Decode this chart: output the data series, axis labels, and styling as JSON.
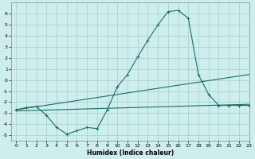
{
  "background_color": "#ceeeed",
  "grid_color": "#aad4d0",
  "line_color": "#1a6e64",
  "marker": "+",
  "xlabel": "Humidex (Indice chaleur)",
  "xlim": [
    -0.5,
    23
  ],
  "ylim": [
    -5.5,
    7.0
  ],
  "yticks": [
    -5,
    -4,
    -3,
    -2,
    -1,
    0,
    1,
    2,
    3,
    4,
    5,
    6
  ],
  "xticks": [
    0,
    1,
    2,
    3,
    4,
    5,
    6,
    7,
    8,
    9,
    10,
    11,
    12,
    13,
    14,
    15,
    16,
    17,
    18,
    19,
    20,
    21,
    22,
    23
  ],
  "series": [
    {
      "x": [
        0,
        23
      ],
      "y": [
        -2.7,
        0.5
      ],
      "has_markers": false
    },
    {
      "x": [
        0,
        23
      ],
      "y": [
        -2.8,
        -2.2
      ],
      "has_markers": false
    },
    {
      "x": [
        0,
        1,
        2,
        3,
        4,
        5,
        6,
        7,
        8,
        9,
        10,
        11,
        12,
        13,
        14,
        15,
        16,
        17,
        18,
        19,
        20,
        21,
        22,
        23
      ],
      "y": [
        -2.7,
        -2.5,
        -2.4,
        -3.2,
        -4.3,
        -4.9,
        -4.6,
        -4.3,
        -4.4,
        -2.7,
        -0.6,
        0.5,
        2.1,
        3.6,
        5.0,
        6.2,
        6.3,
        5.6,
        0.5,
        -1.3,
        -2.3,
        -2.3,
        -2.3,
        -2.3
      ],
      "has_markers": true
    }
  ]
}
